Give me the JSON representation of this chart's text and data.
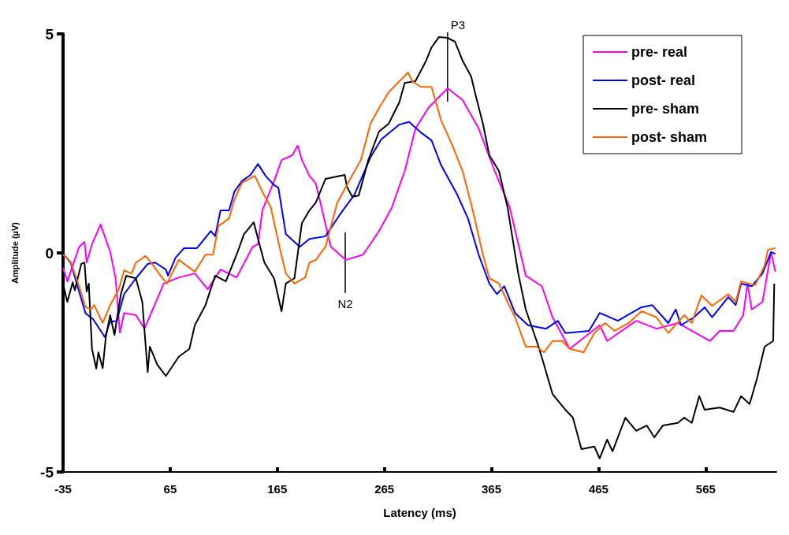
{
  "chart_data": {
    "type": "line",
    "xlabel": "Latency (ms)",
    "ylabel": "Amplitude (µV)",
    "xlim": [
      -35,
      631
    ],
    "xticks": [
      -35,
      65,
      165,
      265,
      365,
      465,
      565
    ],
    "ylim": [
      -5,
      5
    ],
    "yticks": [
      -5,
      0,
      5
    ],
    "legend": "top right",
    "marker": "none",
    "line_style": "solid",
    "annotations": [
      "N2",
      {
        "text": "P3",
        "x": 324,
        "y": 5
      }
    ],
    "series": [
      {
        "name": "pre- real",
        "color": "#ff00ff",
        "x": [
          -35,
          -31,
          -20,
          -15,
          -13,
          -8,
          0,
          9,
          14,
          18,
          22,
          33,
          41,
          59,
          73,
          88,
          100,
          112,
          127,
          142,
          147,
          151,
          162,
          169,
          179,
          184,
          188,
          195,
          201,
          215,
          229,
          245,
          260,
          272,
          284,
          294,
          306,
          324,
          338,
          353,
          368,
          382,
          397,
          412,
          422,
          438,
          466,
          473,
          500,
          519,
          539,
          569,
          578,
          591,
          600,
          604,
          608,
          618,
          626,
          630
        ],
        "values": [
          -0.34,
          -0.65,
          0.14,
          0.25,
          -0.22,
          0.2,
          0.65,
          0.02,
          -0.58,
          -1.82,
          -1.37,
          -1.42,
          -1.73,
          -0.7,
          -0.56,
          -0.47,
          -0.83,
          -0.38,
          -0.56,
          0.14,
          0.2,
          0.97,
          1.64,
          2.12,
          2.23,
          2.45,
          2.12,
          1.76,
          1.58,
          0.14,
          -0.16,
          -0.04,
          0.5,
          1.04,
          1.87,
          2.84,
          3.31,
          3.76,
          3.49,
          2.84,
          1.87,
          1.04,
          -0.52,
          -0.76,
          -1.47,
          -2.19,
          -1.65,
          -2.01,
          -1.55,
          -1.73,
          -1.6,
          -2.01,
          -1.78,
          -1.78,
          -1.42,
          -0.7,
          -1.29,
          -1.12,
          0.02,
          -0.43
        ]
      },
      {
        "name": "post- real",
        "color": "#0000ff",
        "x": [
          -35,
          -28,
          -14,
          -7,
          4,
          9,
          15,
          22,
          33,
          44,
          51,
          61,
          63,
          70,
          78,
          90,
          103,
          107,
          112,
          120,
          125,
          132,
          140,
          147,
          154,
          162,
          166,
          173,
          186,
          195,
          210,
          223,
          237,
          252,
          262,
          279,
          288,
          299,
          309,
          318,
          333,
          343,
          353,
          363,
          370,
          377,
          387,
          399,
          416,
          427,
          434,
          456,
          466,
          483,
          495,
          505,
          515,
          530,
          537,
          542,
          554,
          564,
          571,
          586,
          593,
          598,
          608,
          618,
          626,
          630
        ],
        "values": [
          -0.02,
          -0.22,
          -1.38,
          -1.51,
          -1.92,
          -1.56,
          -1.56,
          -0.94,
          -0.58,
          -0.25,
          -0.22,
          -0.38,
          -0.52,
          -0.11,
          0.11,
          0.11,
          0.5,
          0.38,
          0.97,
          0.97,
          1.4,
          1.64,
          1.78,
          2.03,
          1.76,
          1.55,
          1.49,
          0.43,
          0.14,
          0.32,
          0.38,
          0.86,
          1.33,
          2.18,
          2.59,
          2.93,
          2.99,
          2.75,
          2.57,
          2.0,
          1.33,
          0.79,
          -0.04,
          -0.7,
          -0.94,
          -0.76,
          -1.37,
          -1.65,
          -1.73,
          -1.55,
          -1.83,
          -1.78,
          -1.37,
          -1.55,
          -1.38,
          -1.24,
          -1.19,
          -1.6,
          -1.29,
          -1.65,
          -1.47,
          -1.24,
          -1.47,
          -1.01,
          -1.19,
          -0.7,
          -0.76,
          -0.47,
          0.02,
          -0.02
        ]
      },
      {
        "name": "pre- sham",
        "color": "#000000",
        "x": [
          -35,
          -31,
          -26,
          -24,
          -18,
          -15,
          -13,
          -11,
          -8,
          -4,
          -2,
          2,
          5,
          9,
          13,
          19,
          24,
          33,
          39,
          44,
          46,
          53,
          61,
          73,
          83,
          88,
          98,
          107,
          117,
          127,
          134,
          143,
          149,
          153,
          162,
          169,
          173,
          181,
          188,
          195,
          201,
          210,
          228,
          230,
          235,
          241,
          250,
          260,
          269,
          279,
          284,
          294,
          304,
          309,
          316,
          324,
          331,
          338,
          346,
          350,
          357,
          363,
          372,
          380,
          390,
          397,
          409,
          414,
          422,
          434,
          441,
          449,
          461,
          466,
          473,
          478,
          490,
          500,
          510,
          517,
          525,
          539,
          545,
          552,
          559,
          564,
          578,
          591,
          598,
          606,
          613,
          620,
          628,
          629
        ],
        "values": [
          -0.7,
          -1.12,
          -0.67,
          -0.85,
          -0.25,
          -0.22,
          -0.88,
          -0.7,
          -2.19,
          -2.64,
          -2.27,
          -2.63,
          -1.91,
          -1.42,
          -1.87,
          -0.94,
          -0.52,
          -0.58,
          -1.12,
          -2.72,
          -2.14,
          -2.55,
          -2.81,
          -2.37,
          -2.19,
          -1.65,
          -1.19,
          -0.52,
          -0.65,
          -0.04,
          0.43,
          0.7,
          0.14,
          -0.22,
          -0.58,
          -1.33,
          -0.7,
          -0.58,
          0.68,
          0.97,
          1.15,
          1.69,
          1.78,
          1.51,
          1.28,
          1.31,
          2.12,
          2.77,
          2.95,
          3.44,
          3.88,
          3.92,
          4.39,
          4.69,
          4.93,
          4.91,
          4.82,
          4.39,
          4.03,
          3.62,
          2.95,
          2.23,
          1.87,
          1.04,
          -0.47,
          -1.29,
          -2.14,
          -2.55,
          -3.22,
          -3.58,
          -3.76,
          -4.48,
          -4.42,
          -4.69,
          -4.26,
          -4.53,
          -3.76,
          -4.06,
          -3.94,
          -4.21,
          -3.94,
          -3.88,
          -3.76,
          -3.88,
          -3.27,
          -3.58,
          -3.53,
          -3.63,
          -3.27,
          -3.45,
          -2.86,
          -2.14,
          -2.01,
          -0.7
        ]
      },
      {
        "name": "post- sham",
        "color": "#ff6600",
        "x": [
          -35,
          -28,
          -20,
          -14,
          -9,
          -6,
          2,
          9,
          17,
          22,
          29,
          33,
          42,
          48,
          56,
          62,
          73,
          88,
          98,
          105,
          110,
          120,
          125,
          132,
          144,
          151,
          159,
          166,
          173,
          181,
          191,
          195,
          201,
          210,
          221,
          232,
          243,
          252,
          260,
          269,
          279,
          287,
          291,
          299,
          309,
          318,
          328,
          338,
          348,
          357,
          363,
          372,
          380,
          387,
          397,
          407,
          414,
          422,
          431,
          438,
          451,
          461,
          471,
          480,
          493,
          505,
          519,
          530,
          545,
          552,
          561,
          571,
          586,
          593,
          598,
          611,
          620,
          623,
          630
        ],
        "values": [
          -0.04,
          -0.2,
          -0.76,
          -1.24,
          -1.29,
          -1.19,
          -1.6,
          -1.19,
          -0.83,
          -0.4,
          -0.47,
          -0.22,
          -0.07,
          -0.25,
          -0.52,
          -0.7,
          -0.16,
          -0.43,
          -0.04,
          -0.04,
          0.61,
          0.79,
          1.22,
          1.6,
          1.76,
          1.4,
          1.04,
          0.25,
          -0.47,
          -0.7,
          -0.56,
          -0.22,
          -0.16,
          0.14,
          1.15,
          1.64,
          2.12,
          2.95,
          3.31,
          3.67,
          3.92,
          4.12,
          3.92,
          3.79,
          3.79,
          3.02,
          2.48,
          1.87,
          0.92,
          -0.04,
          -0.58,
          -0.7,
          -1.12,
          -1.47,
          -2.14,
          -2.14,
          -2.27,
          -2.01,
          -2.01,
          -2.19,
          -2.27,
          -1.83,
          -1.6,
          -1.78,
          -1.6,
          -1.33,
          -1.47,
          -1.83,
          -1.42,
          -1.6,
          -0.97,
          -1.21,
          -0.94,
          -1.12,
          -0.65,
          -0.74,
          -0.29,
          0.07,
          0.11
        ]
      }
    ]
  }
}
